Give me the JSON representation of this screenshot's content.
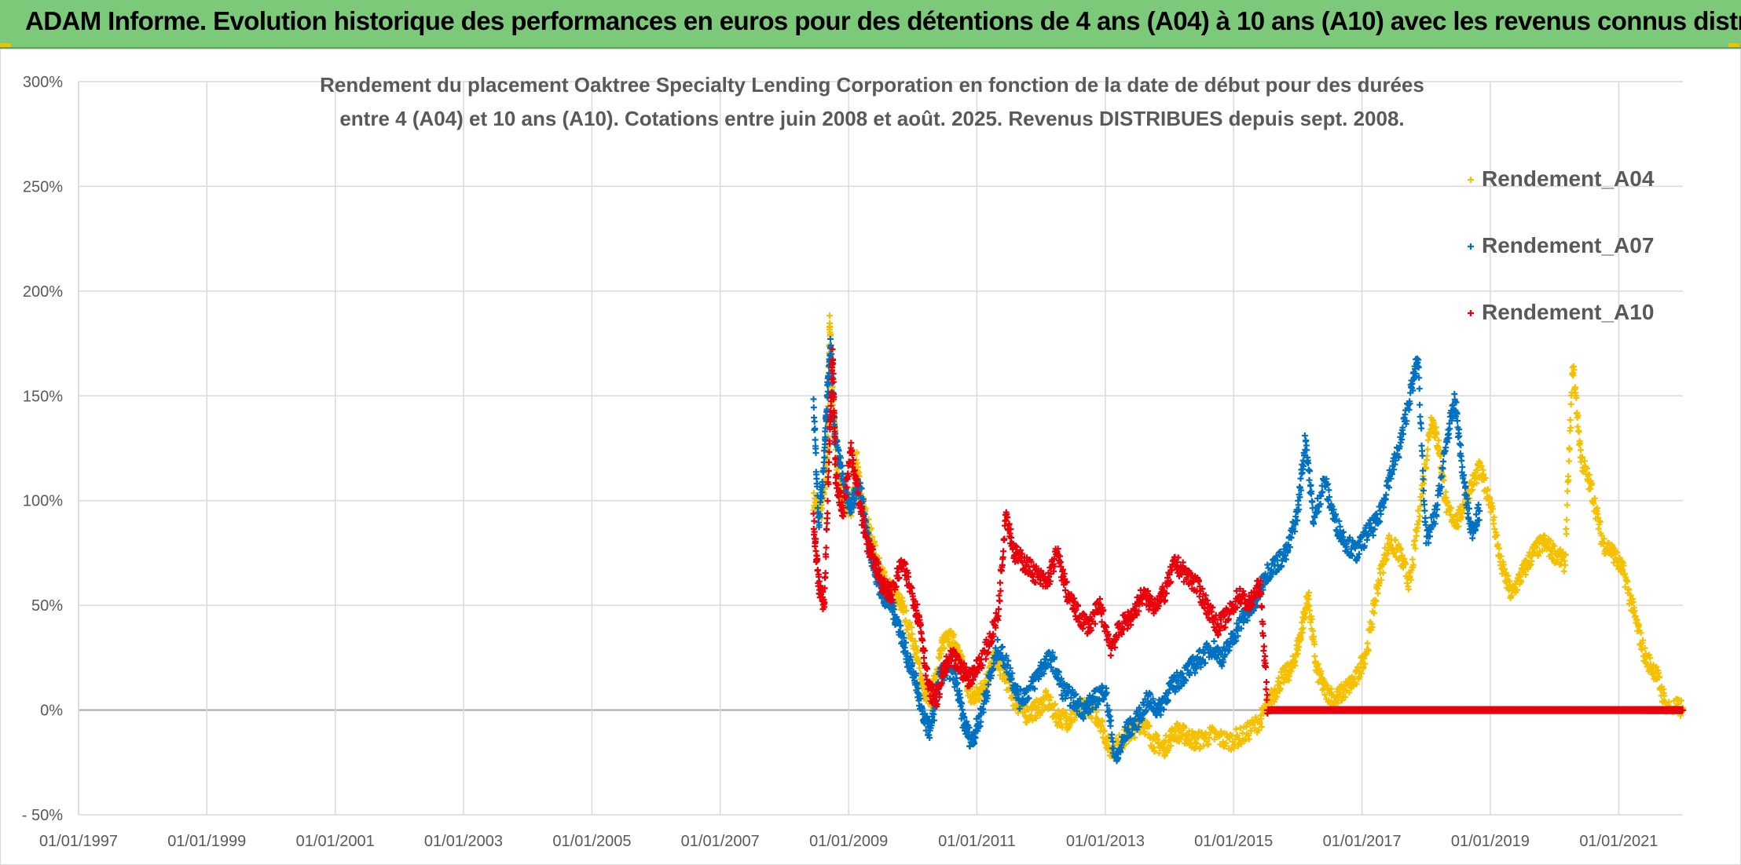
{
  "header": {
    "title": "ADAM Informe. Evolution historique des performances en euros pour des détentions de 4 ans (A04) à 10 ans (A10) avec les revenus connus distribués"
  },
  "colors": {
    "banner": "#7cc97a",
    "A04": "#f5c000",
    "A07": "#0070c0",
    "A10": "#e8000b",
    "grid": "#d9d9d9",
    "zero_line": "#a6a6a6"
  },
  "chart_data": {
    "type": "scatter",
    "title_lines": [
      "Rendement du placement Oaktree Specialty Lending Corporation en fonction de la date de début pour des durées",
      "entre 4 (A04) et 10 ans (A10). Cotations entre juin 2008 et août. 2025. Revenus DISTRIBUES depuis sept. 2008."
    ],
    "xlabel": "",
    "ylabel": "",
    "x_ticks": [
      "01/01/1997",
      "01/01/1999",
      "01/01/2001",
      "01/01/2003",
      "01/01/2005",
      "01/01/2007",
      "01/01/2009",
      "01/01/2011",
      "01/01/2013",
      "01/01/2015",
      "01/01/2017",
      "01/01/2019",
      "01/01/2021"
    ],
    "y_ticks": [
      "- 50%",
      "0%",
      "50%",
      "100%",
      "150%",
      "200%",
      "250%",
      "300%"
    ],
    "xlim": [
      "1997-01-01",
      "2022-01-01"
    ],
    "ylim": [
      -50,
      300
    ],
    "grid": true,
    "legend_position": "top-right",
    "marker": "+",
    "series": [
      {
        "name": "Rendement_A04",
        "color": "#f5c000",
        "points": [
          [
            "2008-06-15",
            100
          ],
          [
            "2008-08-01",
            95
          ],
          [
            "2008-09-01",
            120
          ],
          [
            "2008-09-15",
            185
          ],
          [
            "2008-10-01",
            150
          ],
          [
            "2008-11-01",
            110
          ],
          [
            "2008-12-15",
            100
          ],
          [
            "2009-01-15",
            95
          ],
          [
            "2009-02-15",
            120
          ],
          [
            "2009-03-15",
            100
          ],
          [
            "2009-05-01",
            85
          ],
          [
            "2009-06-15",
            70
          ],
          [
            "2009-08-01",
            60
          ],
          [
            "2009-09-15",
            55
          ],
          [
            "2009-11-01",
            50
          ],
          [
            "2010-01-15",
            30
          ],
          [
            "2010-03-01",
            10
          ],
          [
            "2010-04-15",
            5
          ],
          [
            "2010-06-01",
            25
          ],
          [
            "2010-07-15",
            38
          ],
          [
            "2010-09-01",
            30
          ],
          [
            "2010-10-15",
            20
          ],
          [
            "2010-12-01",
            5
          ],
          [
            "2011-01-15",
            8
          ],
          [
            "2011-03-01",
            15
          ],
          [
            "2011-04-15",
            25
          ],
          [
            "2011-06-01",
            18
          ],
          [
            "2011-08-01",
            5
          ],
          [
            "2011-10-01",
            -2
          ],
          [
            "2011-12-01",
            0
          ],
          [
            "2012-02-01",
            5
          ],
          [
            "2012-04-01",
            -3
          ],
          [
            "2012-06-01",
            -5
          ],
          [
            "2012-08-01",
            0
          ],
          [
            "2012-10-01",
            2
          ],
          [
            "2012-12-01",
            -5
          ],
          [
            "2013-02-01",
            -20
          ],
          [
            "2013-04-01",
            -15
          ],
          [
            "2013-06-01",
            -10
          ],
          [
            "2013-08-01",
            -5
          ],
          [
            "2013-10-01",
            -15
          ],
          [
            "2013-12-01",
            -18
          ],
          [
            "2014-02-01",
            -10
          ],
          [
            "2014-04-01",
            -12
          ],
          [
            "2014-06-01",
            -15
          ],
          [
            "2014-09-01",
            -12
          ],
          [
            "2014-12-01",
            -15
          ],
          [
            "2015-03-01",
            -12
          ],
          [
            "2015-06-01",
            -5
          ],
          [
            "2015-08-01",
            5
          ],
          [
            "2015-10-01",
            15
          ],
          [
            "2015-12-01",
            20
          ],
          [
            "2016-01-15",
            35
          ],
          [
            "2016-03-01",
            55
          ],
          [
            "2016-04-15",
            20
          ],
          [
            "2016-06-01",
            10
          ],
          [
            "2016-08-01",
            5
          ],
          [
            "2016-10-01",
            10
          ],
          [
            "2016-12-01",
            15
          ],
          [
            "2017-02-01",
            30
          ],
          [
            "2017-04-01",
            60
          ],
          [
            "2017-06-01",
            80
          ],
          [
            "2017-08-01",
            75
          ],
          [
            "2017-10-01",
            60
          ],
          [
            "2017-12-01",
            100
          ],
          [
            "2018-02-01",
            140
          ],
          [
            "2018-03-15",
            125
          ],
          [
            "2018-05-01",
            95
          ],
          [
            "2018-07-01",
            90
          ],
          [
            "2018-09-01",
            105
          ],
          [
            "2018-11-01",
            115
          ],
          [
            "2019-01-01",
            100
          ],
          [
            "2019-03-01",
            70
          ],
          [
            "2019-05-01",
            55
          ],
          [
            "2019-07-01",
            65
          ],
          [
            "2019-09-01",
            75
          ],
          [
            "2019-11-01",
            80
          ],
          [
            "2020-01-01",
            75
          ],
          [
            "2020-03-01",
            70
          ],
          [
            "2020-04-15",
            165
          ],
          [
            "2020-06-01",
            120
          ],
          [
            "2020-08-01",
            105
          ],
          [
            "2020-10-01",
            80
          ],
          [
            "2020-12-01",
            75
          ],
          [
            "2021-02-01",
            65
          ],
          [
            "2021-04-01",
            45
          ],
          [
            "2021-06-01",
            25
          ],
          [
            "2021-08-01",
            18
          ],
          [
            "2021-10-01",
            1
          ],
          [
            "2021-12-31",
            1
          ]
        ]
      },
      {
        "name": "Rendement_A07",
        "color": "#0070c0",
        "points": [
          [
            "2008-06-15",
            145
          ],
          [
            "2008-07-15",
            90
          ],
          [
            "2008-08-15",
            120
          ],
          [
            "2008-09-01",
            150
          ],
          [
            "2008-09-20",
            175
          ],
          [
            "2008-10-15",
            130
          ],
          [
            "2008-12-01",
            110
          ],
          [
            "2009-01-15",
            95
          ],
          [
            "2009-03-01",
            110
          ],
          [
            "2009-04-15",
            85
          ],
          [
            "2009-06-01",
            65
          ],
          [
            "2009-07-15",
            55
          ],
          [
            "2009-09-01",
            50
          ],
          [
            "2009-10-15",
            40
          ],
          [
            "2009-12-01",
            25
          ],
          [
            "2010-01-15",
            15
          ],
          [
            "2010-03-01",
            -5
          ],
          [
            "2010-04-15",
            -10
          ],
          [
            "2010-06-01",
            15
          ],
          [
            "2010-07-15",
            20
          ],
          [
            "2010-09-01",
            15
          ],
          [
            "2010-10-15",
            -5
          ],
          [
            "2010-12-01",
            -15
          ],
          [
            "2011-01-15",
            -5
          ],
          [
            "2011-03-01",
            10
          ],
          [
            "2011-05-01",
            30
          ],
          [
            "2011-07-01",
            20
          ],
          [
            "2011-09-01",
            5
          ],
          [
            "2011-11-01",
            10
          ],
          [
            "2012-01-01",
            20
          ],
          [
            "2012-03-01",
            25
          ],
          [
            "2012-05-01",
            10
          ],
          [
            "2012-07-01",
            5
          ],
          [
            "2012-09-01",
            0
          ],
          [
            "2012-11-01",
            5
          ],
          [
            "2013-01-01",
            10
          ],
          [
            "2013-03-01",
            -25
          ],
          [
            "2013-05-01",
            -10
          ],
          [
            "2013-07-01",
            -5
          ],
          [
            "2013-09-01",
            5
          ],
          [
            "2013-11-01",
            0
          ],
          [
            "2014-01-01",
            10
          ],
          [
            "2014-03-01",
            15
          ],
          [
            "2014-05-01",
            20
          ],
          [
            "2014-07-01",
            25
          ],
          [
            "2014-09-01",
            30
          ],
          [
            "2014-11-01",
            25
          ],
          [
            "2015-01-01",
            35
          ],
          [
            "2015-03-01",
            45
          ],
          [
            "2015-05-01",
            50
          ],
          [
            "2015-07-01",
            65
          ],
          [
            "2015-09-01",
            70
          ],
          [
            "2015-11-01",
            75
          ],
          [
            "2016-01-01",
            95
          ],
          [
            "2016-02-15",
            130
          ],
          [
            "2016-04-01",
            90
          ],
          [
            "2016-06-01",
            110
          ],
          [
            "2016-08-01",
            90
          ],
          [
            "2016-10-01",
            80
          ],
          [
            "2016-12-01",
            75
          ],
          [
            "2017-02-01",
            85
          ],
          [
            "2017-04-01",
            90
          ],
          [
            "2017-06-01",
            110
          ],
          [
            "2017-08-01",
            125
          ],
          [
            "2017-10-01",
            150
          ],
          [
            "2017-11-15",
            168
          ],
          [
            "2018-01-01",
            80
          ],
          [
            "2018-03-01",
            95
          ],
          [
            "2018-05-01",
            130
          ],
          [
            "2018-06-15",
            148
          ],
          [
            "2018-08-01",
            110
          ],
          [
            "2018-09-15",
            85
          ],
          [
            "2018-11-01",
            95
          ]
        ]
      },
      {
        "name": "Rendement_A10",
        "color": "#e8000b",
        "points": [
          [
            "2008-06-15",
            90
          ],
          [
            "2008-07-15",
            60
          ],
          [
            "2008-08-15",
            50
          ],
          [
            "2008-09-15",
            130
          ],
          [
            "2008-10-01",
            170
          ],
          [
            "2008-10-20",
            110
          ],
          [
            "2008-12-01",
            95
          ],
          [
            "2009-01-15",
            125
          ],
          [
            "2009-03-01",
            100
          ],
          [
            "2009-04-15",
            80
          ],
          [
            "2009-06-01",
            70
          ],
          [
            "2009-07-15",
            60
          ],
          [
            "2009-09-01",
            55
          ],
          [
            "2009-11-01",
            70
          ],
          [
            "2010-01-01",
            55
          ],
          [
            "2010-02-15",
            40
          ],
          [
            "2010-04-01",
            10
          ],
          [
            "2010-05-15",
            5
          ],
          [
            "2010-07-01",
            20
          ],
          [
            "2010-08-15",
            25
          ],
          [
            "2010-10-01",
            20
          ],
          [
            "2010-11-15",
            15
          ],
          [
            "2011-01-01",
            20
          ],
          [
            "2011-03-01",
            30
          ],
          [
            "2011-05-01",
            45
          ],
          [
            "2011-06-15",
            95
          ],
          [
            "2011-08-01",
            75
          ],
          [
            "2011-10-01",
            70
          ],
          [
            "2011-12-01",
            65
          ],
          [
            "2012-02-01",
            60
          ],
          [
            "2012-04-01",
            75
          ],
          [
            "2012-06-01",
            55
          ],
          [
            "2012-08-01",
            45
          ],
          [
            "2012-10-01",
            40
          ],
          [
            "2012-12-01",
            50
          ],
          [
            "2013-02-01",
            30
          ],
          [
            "2013-04-01",
            40
          ],
          [
            "2013-06-01",
            45
          ],
          [
            "2013-08-01",
            55
          ],
          [
            "2013-10-01",
            50
          ],
          [
            "2013-12-01",
            55
          ],
          [
            "2014-02-01",
            70
          ],
          [
            "2014-04-01",
            65
          ],
          [
            "2014-06-01",
            60
          ],
          [
            "2014-08-01",
            50
          ],
          [
            "2014-10-01",
            40
          ],
          [
            "2014-12-01",
            45
          ],
          [
            "2015-02-01",
            55
          ],
          [
            "2015-04-01",
            50
          ],
          [
            "2015-06-01",
            60
          ],
          [
            "2015-07-15",
            0
          ],
          [
            "2016-06-01",
            0
          ],
          [
            "2017-06-01",
            0
          ],
          [
            "2018-06-01",
            0
          ],
          [
            "2019-06-01",
            0
          ],
          [
            "2020-06-01",
            0
          ],
          [
            "2021-06-01",
            0
          ],
          [
            "2021-12-31",
            0
          ]
        ]
      }
    ]
  }
}
